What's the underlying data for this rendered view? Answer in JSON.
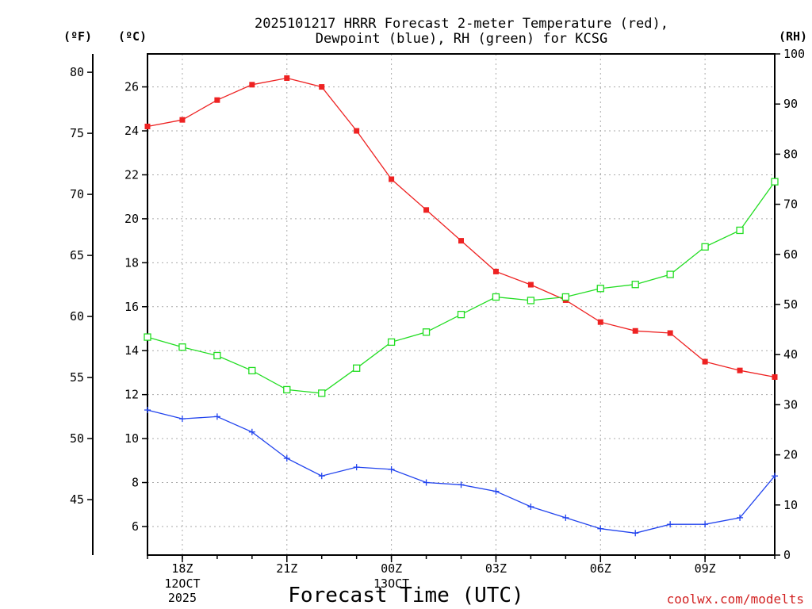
{
  "chart_data": {
    "type": "line",
    "title_lines": [
      "2025101217 HRRR Forecast 2-meter Temperature (red),",
      "Dewpoint (blue), RH (green) for KCSG"
    ],
    "xlabel": "Forecast Time (UTC)",
    "credit": "coolwx.com/modelts",
    "units": {
      "fahrenheit": "(ºF)",
      "celsius": "(ºC)",
      "rh": "(RH)"
    },
    "x_hours": [
      0,
      1,
      2,
      3,
      4,
      5,
      6,
      7,
      8,
      9,
      10,
      11,
      12,
      13,
      14,
      15,
      16,
      17,
      18
    ],
    "x_range": [
      0,
      18
    ],
    "x_ticks": [
      {
        "hour": 1,
        "label": "18Z",
        "sublabels": [
          "12OCT",
          "2025"
        ]
      },
      {
        "hour": 4,
        "label": "21Z",
        "sublabels": []
      },
      {
        "hour": 7,
        "label": "00Z",
        "sublabels": [
          "13OCT"
        ]
      },
      {
        "hour": 10,
        "label": "03Z",
        "sublabels": []
      },
      {
        "hour": 13,
        "label": "06Z",
        "sublabels": []
      },
      {
        "hour": 16,
        "label": "09Z",
        "sublabels": []
      }
    ],
    "celsius_axis": {
      "range": [
        4.7,
        27.5
      ],
      "ticks": [
        6,
        8,
        10,
        12,
        14,
        16,
        18,
        20,
        22,
        24,
        26
      ]
    },
    "fahrenheit_axis": {
      "ticks": [
        45,
        50,
        55,
        60,
        65,
        70,
        75,
        80
      ]
    },
    "rh_axis": {
      "range": [
        0,
        100
      ],
      "ticks": [
        0,
        10,
        20,
        30,
        40,
        50,
        60,
        70,
        80,
        90,
        100
      ]
    },
    "series": [
      {
        "name": "Temperature",
        "unit": "C",
        "color": "#ee2222",
        "marker": "filled-square",
        "values": [
          24.2,
          24.5,
          25.4,
          26.1,
          26.4,
          26.0,
          24.0,
          21.8,
          20.4,
          19.0,
          17.6,
          17.0,
          16.3,
          15.3,
          14.9,
          14.8,
          13.5,
          13.1,
          12.8
        ]
      },
      {
        "name": "Dewpoint",
        "unit": "C",
        "color": "#2244ee",
        "marker": "plus",
        "values": [
          11.3,
          10.9,
          11.0,
          10.3,
          9.1,
          8.3,
          8.7,
          8.6,
          8.0,
          7.9,
          7.6,
          6.9,
          6.4,
          5.9,
          5.7,
          6.1,
          6.1,
          6.4,
          8.3
        ]
      },
      {
        "name": "RH",
        "unit": "%",
        "color": "#22dd22",
        "marker": "open-square",
        "values": [
          43.5,
          41.5,
          39.8,
          36.8,
          33.0,
          32.3,
          37.3,
          42.5,
          44.5,
          48.0,
          51.5,
          50.8,
          51.5,
          53.2,
          54.0,
          56.0,
          61.5,
          64.8,
          74.5
        ]
      }
    ]
  }
}
